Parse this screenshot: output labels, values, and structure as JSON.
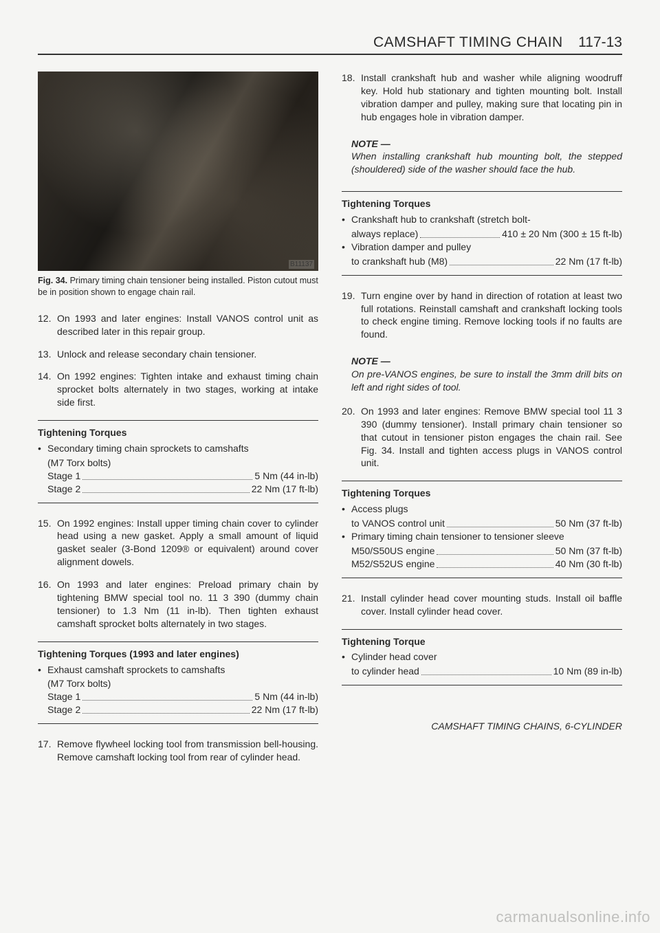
{
  "header": {
    "title": "CAMSHAFT TIMING CHAIN",
    "pagenum": "117-13"
  },
  "left": {
    "photo_label": "B11137",
    "caption_bold": "Fig. 34.",
    "caption_text": "Primary timing chain tensioner being installed. Piston cutout must be in position shown to engage chain rail.",
    "steps_a": [
      {
        "num": "12.",
        "text": "On 1993 and later engines: Install VANOS control unit as described later in this repair group."
      },
      {
        "num": "13.",
        "text": "Unlock and release secondary chain tensioner."
      },
      {
        "num": "14.",
        "text": "On 1992 engines: Tighten intake and exhaust timing chain sprocket bolts alternately in two stages, working at intake side first."
      }
    ],
    "box1": {
      "title": "Tightening Torques",
      "bullet": "Secondary timing chain sprockets to camshafts",
      "sub": "(M7 Torx bolts)",
      "lines": [
        {
          "label": "Stage 1",
          "value": "5 Nm (44 in-lb)"
        },
        {
          "label": "Stage 2",
          "value": "22 Nm (17 ft-lb)"
        }
      ]
    },
    "steps_b": [
      {
        "num": "15.",
        "text": "On 1992 engines: Install upper timing chain cover to cylinder head using a new gasket. Apply a small amount of liquid gasket sealer (3-Bond 1209® or equivalent) around cover alignment dowels."
      },
      {
        "num": "16.",
        "text": "On 1993 and later engines: Preload primary chain by tightening BMW special tool no. 11 3 390 (dummy chain tensioner) to 1.3 Nm (11 in-lb). Then tighten exhaust camshaft sprocket bolts alternately in two stages."
      }
    ],
    "box2": {
      "title": "Tightening Torques (1993 and later engines)",
      "bullet": "Exhaust camshaft sprockets to camshafts",
      "sub": "(M7 Torx bolts)",
      "lines": [
        {
          "label": "Stage 1",
          "value": "5 Nm (44 in-lb)"
        },
        {
          "label": "Stage 2",
          "value": "22 Nm (17 ft-lb)"
        }
      ]
    },
    "steps_c": [
      {
        "num": "17.",
        "text": "Remove flywheel locking tool from transmission bell-housing. Remove camshaft locking tool from rear of cylinder head."
      }
    ]
  },
  "right": {
    "step18": {
      "num": "18.",
      "text": "Install crankshaft hub and washer while aligning woodruff key. Hold hub stationary and tighten mounting bolt. Install vibration damper and pulley, making sure that locating pin in hub engages hole in vibration damper."
    },
    "note1": {
      "head": "NOTE —",
      "body": "When installing crankshaft hub mounting bolt, the stepped (shouldered) side of the washer should face the hub."
    },
    "box3": {
      "title": "Tightening Torques",
      "b1_a": "Crankshaft hub to crankshaft (stretch bolt-",
      "b1_line": {
        "label": "always replace)",
        "value": "410 ± 20 Nm (300 ± 15 ft-lb)"
      },
      "b2_a": "Vibration damper and pulley",
      "b2_line": {
        "label": "to crankshaft hub (M8)",
        "value": "22 Nm (17 ft-lb)"
      }
    },
    "step19": {
      "num": "19.",
      "text": "Turn engine over by hand in direction of rotation at least two full rotations. Reinstall camshaft and crankshaft locking tools to check engine timing. Remove locking tools if no faults are found."
    },
    "note2": {
      "head": "NOTE —",
      "body": "On pre-VANOS engines, be sure to install the 3mm drill bits on left and right sides of tool."
    },
    "step20": {
      "num": "20.",
      "text": "On 1993 and later engines: Remove BMW special tool 11 3 390 (dummy tensioner). Install primary chain tensioner so that cutout in tensioner piston engages the chain rail. See Fig. 34. Install and tighten access plugs in VANOS control unit."
    },
    "box4": {
      "title": "Tightening Torques",
      "b1_a": "Access plugs",
      "b1_line": {
        "label": "to VANOS control unit",
        "value": "50 Nm (37 ft-lb)"
      },
      "b2_a": "Primary timing chain tensioner to tensioner sleeve",
      "b2_lines": [
        {
          "label": "M50/S50US engine",
          "value": "50 Nm (37 ft-lb)"
        },
        {
          "label": "M52/S52US engine",
          "value": "40 Nm (30 ft-lb)"
        }
      ]
    },
    "step21": {
      "num": "21.",
      "text": "Install cylinder head cover mounting studs. Install oil baffle cover. Install cylinder head cover."
    },
    "box5": {
      "title": "Tightening Torque",
      "b1_a": "Cylinder head cover",
      "b1_line": {
        "label": "to cylinder head",
        "value": "10 Nm (89 in-lb)"
      }
    }
  },
  "footer": "CAMSHAFT TIMING CHAINS, 6-CYLINDER",
  "watermark": "carmanualsonline.info"
}
